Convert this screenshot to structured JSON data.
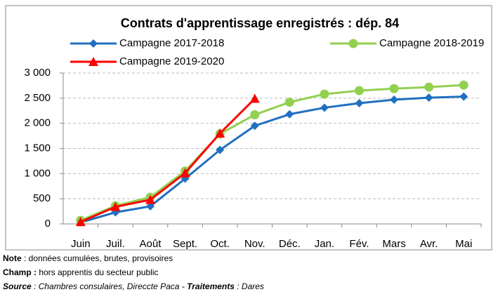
{
  "chart_data": {
    "type": "line",
    "title": "Contrats d'apprentissage enregistrés : dép. 84",
    "categories": [
      "Juin",
      "Juil.",
      "Août",
      "Sept.",
      "Oct.",
      "Nov.",
      "Déc.",
      "Jan.",
      "Fév.",
      "Mars",
      "Avr.",
      "Mai"
    ],
    "series": [
      {
        "name": "Campagne 2017-2018",
        "color": "#2070c0",
        "marker": "diamond",
        "values": [
          30,
          230,
          350,
          900,
          1470,
          1950,
          2180,
          2310,
          2400,
          2470,
          2510,
          2530
        ]
      },
      {
        "name": "Campagne 2018-2019",
        "color": "#92d050",
        "marker": "circle",
        "values": [
          70,
          360,
          530,
          1050,
          1790,
          2170,
          2420,
          2580,
          2650,
          2690,
          2720,
          2760
        ]
      },
      {
        "name": "Campagne 2019-2020",
        "color": "#ff0000",
        "marker": "triangle",
        "values": [
          40,
          340,
          480,
          1010,
          1800,
          2490,
          null,
          null,
          null,
          null,
          null,
          null
        ]
      }
    ],
    "ylim": [
      0,
      3000
    ],
    "yticks": [
      0,
      500,
      {
        "value": 1000,
        "label": "1 000"
      },
      {
        "value": 1500,
        "label": "1 500"
      },
      {
        "value": 2000,
        "label": "2 000"
      },
      {
        "value": 2500,
        "label": "2 500"
      },
      {
        "value": 3000,
        "label": "3 000"
      }
    ],
    "grid": true,
    "legend": "top"
  },
  "notes": [
    {
      "label": "Note",
      "text": " : données  cumulées, brutes, provisoires"
    },
    {
      "label": "Champ :",
      "text": " hors apprentis du secteur public"
    },
    {
      "label": "Source",
      "text": " : Chambres consulaires, Direccte Paca - ",
      "label2": "Traitements",
      "text2": " : Dares"
    }
  ]
}
